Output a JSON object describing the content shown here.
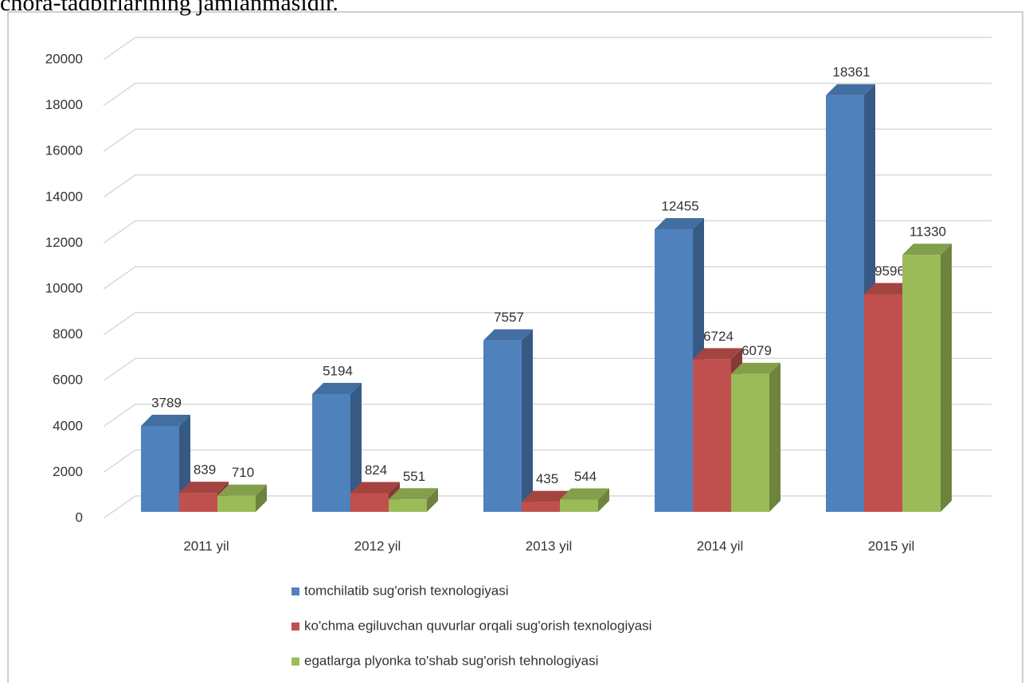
{
  "caption": "chora-tadbirlarining jamlanmasidir.",
  "chart_data": {
    "type": "bar3d",
    "categories": [
      "2011 yil",
      "2012 yil",
      "2013 yil",
      "2014 yil",
      "2015 yil"
    ],
    "series": [
      {
        "name": "tomchilatib sug'orish texnologiyasi",
        "color": "#4f81bd",
        "values": [
          3789,
          5194,
          7557,
          12455,
          18361
        ]
      },
      {
        "name": "ko'chma egiluvchan quvurlar orqali sug'orish texnologiyasi",
        "color": "#c0504d",
        "values": [
          839,
          824,
          435,
          6724,
          9596
        ]
      },
      {
        "name": "egatlarga plyonka to'shab sug'orish tehnologiyasi",
        "color": "#9bbb59",
        "values": [
          710,
          551,
          544,
          6079,
          11330
        ]
      }
    ],
    "ylim": [
      0,
      20000
    ],
    "yticks": [
      0,
      2000,
      4000,
      6000,
      8000,
      10000,
      12000,
      14000,
      16000,
      18000,
      20000
    ],
    "grid": true,
    "legend": "bottom"
  }
}
